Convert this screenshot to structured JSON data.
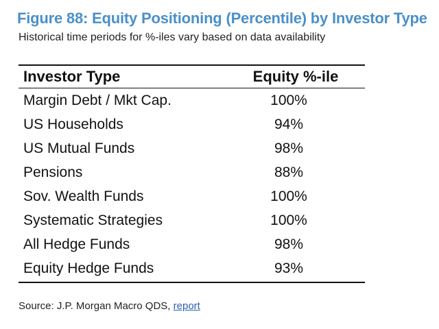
{
  "title": "Figure 88: Equity Positioning (Percentile) by Investor Type",
  "subtitle": "Historical time periods for %-iles vary based on data availability",
  "table": {
    "headers": {
      "investor_type": "Investor Type",
      "equity_percentile": "Equity %-ile"
    },
    "rows": [
      {
        "investor_type": "Margin Debt / Mkt Cap.",
        "equity_percentile": "100%"
      },
      {
        "investor_type": "US Households",
        "equity_percentile": "94%"
      },
      {
        "investor_type": "US Mutual Funds",
        "equity_percentile": "98%"
      },
      {
        "investor_type": "Pensions",
        "equity_percentile": "88%"
      },
      {
        "investor_type": "Sov. Wealth Funds",
        "equity_percentile": "100%"
      },
      {
        "investor_type": "Systematic Strategies",
        "equity_percentile": "100%"
      },
      {
        "investor_type": "All Hedge Funds",
        "equity_percentile": "98%"
      },
      {
        "investor_type": "Equity Hedge Funds",
        "equity_percentile": "93%"
      }
    ]
  },
  "source": {
    "prefix": "Source: J.P. Morgan Macro QDS, ",
    "link_label": "report"
  }
}
